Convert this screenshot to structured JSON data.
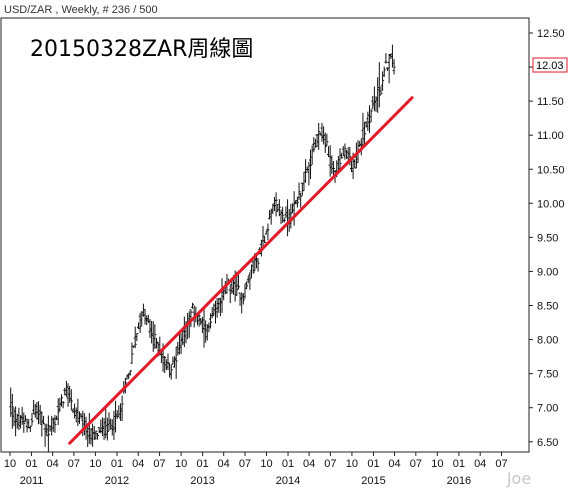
{
  "header": {
    "symbol": "USD/ZAR",
    "info": " , Weekly, # 236 / 500"
  },
  "watermark": "Joe",
  "chart_data": {
    "type": "ohlc",
    "title": "20150328ZAR周線圖",
    "ylim": [
      6.35,
      12.72
    ],
    "y_ticks": [
      "6.50",
      "7.00",
      "7.50",
      "8.00",
      "8.50",
      "9.00",
      "9.50",
      "10.00",
      "10.50",
      "11.00",
      "11.50",
      "12.00",
      "12.50"
    ],
    "last_value": "12.03",
    "x_ticks": [
      "10",
      "01",
      "04",
      "07",
      "10",
      "01",
      "04",
      "07",
      "10",
      "01",
      "04",
      "07",
      "10",
      "01",
      "04",
      "07",
      "10",
      "01",
      "04",
      "07",
      "10",
      "01",
      "04",
      "07"
    ],
    "x_years": [
      "2011",
      "2012",
      "2013",
      "2014",
      "2015",
      "2016"
    ],
    "x_range": [
      "2010-10-01",
      "2016-09-01"
    ],
    "trendline": {
      "color": "#e21b2a",
      "start": {
        "date": "2011-06-13",
        "value": 6.48
      },
      "end": {
        "date": "2015-06-15",
        "value": 11.55
      }
    },
    "series_anchor_dates": [
      "2010-10-04",
      "2015-03-30"
    ],
    "anchor_values": [
      7.05,
      6.85,
      6.8,
      6.78,
      6.72,
      6.9,
      6.95,
      6.78,
      6.62,
      6.7,
      6.85,
      7.05,
      7.25,
      7.15,
      6.95,
      6.85,
      6.72,
      6.65,
      6.58,
      6.62,
      6.66,
      6.7,
      6.74,
      6.82,
      6.9,
      7.3,
      7.5,
      7.9,
      8.2,
      8.4,
      8.25,
      8.05,
      7.95,
      7.8,
      7.65,
      7.55,
      7.7,
      7.9,
      8.1,
      8.3,
      8.45,
      8.35,
      8.2,
      8.1,
      8.25,
      8.45,
      8.6,
      8.7,
      8.8,
      8.75,
      8.7,
      8.65,
      8.85,
      9.05,
      9.15,
      9.35,
      9.6,
      9.85,
      10.0,
      9.9,
      9.8,
      9.75,
      9.95,
      10.1,
      10.25,
      10.45,
      10.7,
      10.9,
      11.05,
      10.9,
      10.65,
      10.45,
      10.55,
      10.75,
      10.65,
      10.55,
      10.7,
      10.95,
      11.15,
      11.35,
      11.55,
      11.65,
      11.95,
      12.15,
      12.03
    ]
  }
}
